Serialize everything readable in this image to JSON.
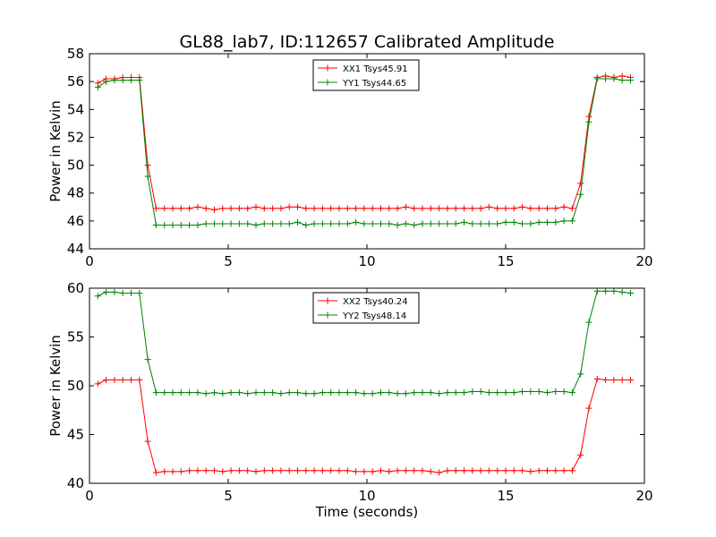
{
  "figure": {
    "title": "GL88_lab7, ID:112657 Calibrated Amplitude"
  },
  "chart_data": [
    {
      "type": "line",
      "xlabel": "",
      "ylabel": "Power in Kelvin",
      "xlim": [
        0,
        20
      ],
      "ylim": [
        44,
        58
      ],
      "xticks": [
        0,
        5,
        10,
        15,
        20
      ],
      "yticks": [
        44,
        46,
        48,
        50,
        52,
        54,
        56,
        58
      ],
      "legend": "top-center",
      "x": [
        0.3,
        0.6,
        0.9,
        1.2,
        1.5,
        1.8,
        2.1,
        2.4,
        2.7,
        3.0,
        3.3,
        3.6,
        3.9,
        4.2,
        4.5,
        4.8,
        5.1,
        5.4,
        5.7,
        6.0,
        6.3,
        6.6,
        6.9,
        7.2,
        7.5,
        7.8,
        8.1,
        8.4,
        8.7,
        9.0,
        9.3,
        9.6,
        9.9,
        10.2,
        10.5,
        10.8,
        11.1,
        11.4,
        11.7,
        12.0,
        12.3,
        12.6,
        12.9,
        13.2,
        13.5,
        13.8,
        14.1,
        14.4,
        14.7,
        15.0,
        15.3,
        15.6,
        15.9,
        16.2,
        16.5,
        16.8,
        17.1,
        17.4,
        17.7,
        18.0,
        18.3,
        18.6,
        18.9,
        19.2,
        19.5
      ],
      "series": [
        {
          "name": "XX1 Tsys45.91",
          "color": "#ff0000",
          "values": [
            55.9,
            56.2,
            56.2,
            56.3,
            56.3,
            56.3,
            50.0,
            46.9,
            46.9,
            46.9,
            46.9,
            46.9,
            47.0,
            46.9,
            46.8,
            46.9,
            46.9,
            46.9,
            46.9,
            47.0,
            46.9,
            46.9,
            46.9,
            47.0,
            47.0,
            46.9,
            46.9,
            46.9,
            46.9,
            46.9,
            46.9,
            46.9,
            46.9,
            46.9,
            46.9,
            46.9,
            46.9,
            47.0,
            46.9,
            46.9,
            46.9,
            46.9,
            46.9,
            46.9,
            46.9,
            46.9,
            46.9,
            47.0,
            46.9,
            46.9,
            46.9,
            47.0,
            46.9,
            46.9,
            46.9,
            46.9,
            47.0,
            46.9,
            48.7,
            53.5,
            56.3,
            56.4,
            56.3,
            56.4,
            56.3
          ]
        },
        {
          "name": "YY1 Tsys44.65",
          "color": "#008000",
          "values": [
            55.6,
            56.0,
            56.1,
            56.1,
            56.1,
            56.1,
            49.2,
            45.7,
            45.7,
            45.7,
            45.7,
            45.7,
            45.7,
            45.8,
            45.8,
            45.8,
            45.8,
            45.8,
            45.8,
            45.7,
            45.8,
            45.8,
            45.8,
            45.8,
            45.9,
            45.7,
            45.8,
            45.8,
            45.8,
            45.8,
            45.8,
            45.9,
            45.8,
            45.8,
            45.8,
            45.8,
            45.7,
            45.8,
            45.7,
            45.8,
            45.8,
            45.8,
            45.8,
            45.8,
            45.9,
            45.8,
            45.8,
            45.8,
            45.8,
            45.9,
            45.9,
            45.8,
            45.8,
            45.9,
            45.9,
            45.9,
            46.0,
            46.0,
            47.9,
            53.1,
            56.2,
            56.2,
            56.2,
            56.1,
            56.1
          ]
        }
      ]
    },
    {
      "type": "line",
      "xlabel": "Time (seconds)",
      "ylabel": "Power in Kelvin",
      "xlim": [
        0,
        20
      ],
      "ylim": [
        40,
        60
      ],
      "xticks": [
        0,
        5,
        10,
        15,
        20
      ],
      "yticks": [
        40,
        45,
        50,
        55,
        60
      ],
      "legend": "top-center",
      "x": [
        0.3,
        0.6,
        0.9,
        1.2,
        1.5,
        1.8,
        2.1,
        2.4,
        2.7,
        3.0,
        3.3,
        3.6,
        3.9,
        4.2,
        4.5,
        4.8,
        5.1,
        5.4,
        5.7,
        6.0,
        6.3,
        6.6,
        6.9,
        7.2,
        7.5,
        7.8,
        8.1,
        8.4,
        8.7,
        9.0,
        9.3,
        9.6,
        9.9,
        10.2,
        10.5,
        10.8,
        11.1,
        11.4,
        11.7,
        12.0,
        12.3,
        12.6,
        12.9,
        13.2,
        13.5,
        13.8,
        14.1,
        14.4,
        14.7,
        15.0,
        15.3,
        15.6,
        15.9,
        16.2,
        16.5,
        16.8,
        17.1,
        17.4,
        17.7,
        18.0,
        18.3,
        18.6,
        18.9,
        19.2,
        19.5
      ],
      "series": [
        {
          "name": "XX2 Tsys40.24",
          "color": "#ff0000",
          "values": [
            50.2,
            50.6,
            50.6,
            50.6,
            50.6,
            50.6,
            44.3,
            41.1,
            41.2,
            41.2,
            41.2,
            41.3,
            41.3,
            41.3,
            41.3,
            41.2,
            41.3,
            41.3,
            41.3,
            41.2,
            41.3,
            41.3,
            41.3,
            41.3,
            41.3,
            41.3,
            41.3,
            41.3,
            41.3,
            41.3,
            41.3,
            41.2,
            41.2,
            41.2,
            41.3,
            41.2,
            41.3,
            41.3,
            41.3,
            41.3,
            41.2,
            41.1,
            41.3,
            41.3,
            41.3,
            41.3,
            41.3,
            41.3,
            41.3,
            41.3,
            41.3,
            41.3,
            41.2,
            41.3,
            41.3,
            41.3,
            41.3,
            41.3,
            42.9,
            47.7,
            50.7,
            50.6,
            50.6,
            50.6,
            50.6
          ]
        },
        {
          "name": "YY2 Tsys48.14",
          "color": "#008000",
          "values": [
            59.2,
            59.6,
            59.6,
            59.5,
            59.5,
            59.5,
            52.7,
            49.3,
            49.3,
            49.3,
            49.3,
            49.3,
            49.3,
            49.2,
            49.3,
            49.2,
            49.3,
            49.3,
            49.2,
            49.3,
            49.3,
            49.3,
            49.2,
            49.3,
            49.3,
            49.2,
            49.2,
            49.3,
            49.3,
            49.3,
            49.3,
            49.3,
            49.2,
            49.2,
            49.3,
            49.3,
            49.2,
            49.2,
            49.3,
            49.3,
            49.3,
            49.2,
            49.3,
            49.3,
            49.3,
            49.4,
            49.4,
            49.3,
            49.3,
            49.3,
            49.3,
            49.4,
            49.4,
            49.4,
            49.3,
            49.4,
            49.4,
            49.3,
            51.2,
            56.5,
            59.7,
            59.7,
            59.7,
            59.6,
            59.5
          ]
        }
      ]
    }
  ]
}
